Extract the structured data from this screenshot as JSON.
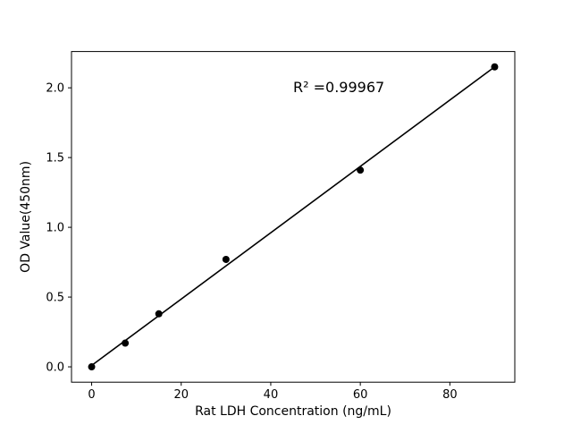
{
  "figure": {
    "background": "#ffffff"
  },
  "chart_data": {
    "type": "scatter",
    "xlabel": "Rat LDH Concentration (ng/mL)",
    "ylabel": "OD Value(450nm)",
    "annotation": "R² =0.99967",
    "x": [
      0,
      7.5,
      15,
      30,
      60,
      90
    ],
    "y": [
      0.0,
      0.17,
      0.38,
      0.77,
      1.41,
      2.15
    ],
    "fit_line": {
      "x": [
        0,
        90
      ],
      "y": [
        0.01,
        2.15
      ]
    },
    "xlim": [
      -4.5,
      94.5
    ],
    "ylim": [
      -0.11,
      2.26
    ],
    "xticks": [
      {
        "value": 0,
        "label": "0"
      },
      {
        "value": 20,
        "label": "20"
      },
      {
        "value": 40,
        "label": "40"
      },
      {
        "value": 60,
        "label": "60"
      },
      {
        "value": 80,
        "label": "80"
      }
    ],
    "yticks": [
      {
        "value": 0.0,
        "label": "0.0"
      },
      {
        "value": 0.5,
        "label": "0.5"
      },
      {
        "value": 1.0,
        "label": "1.0"
      },
      {
        "value": 1.5,
        "label": "1.5"
      },
      {
        "value": 2.0,
        "label": "2.0"
      }
    ],
    "marker": {
      "shape": "circle",
      "color": "#000000",
      "radius": 4
    },
    "line_color": "#000000",
    "axis_color": "#000000",
    "grid": false
  }
}
